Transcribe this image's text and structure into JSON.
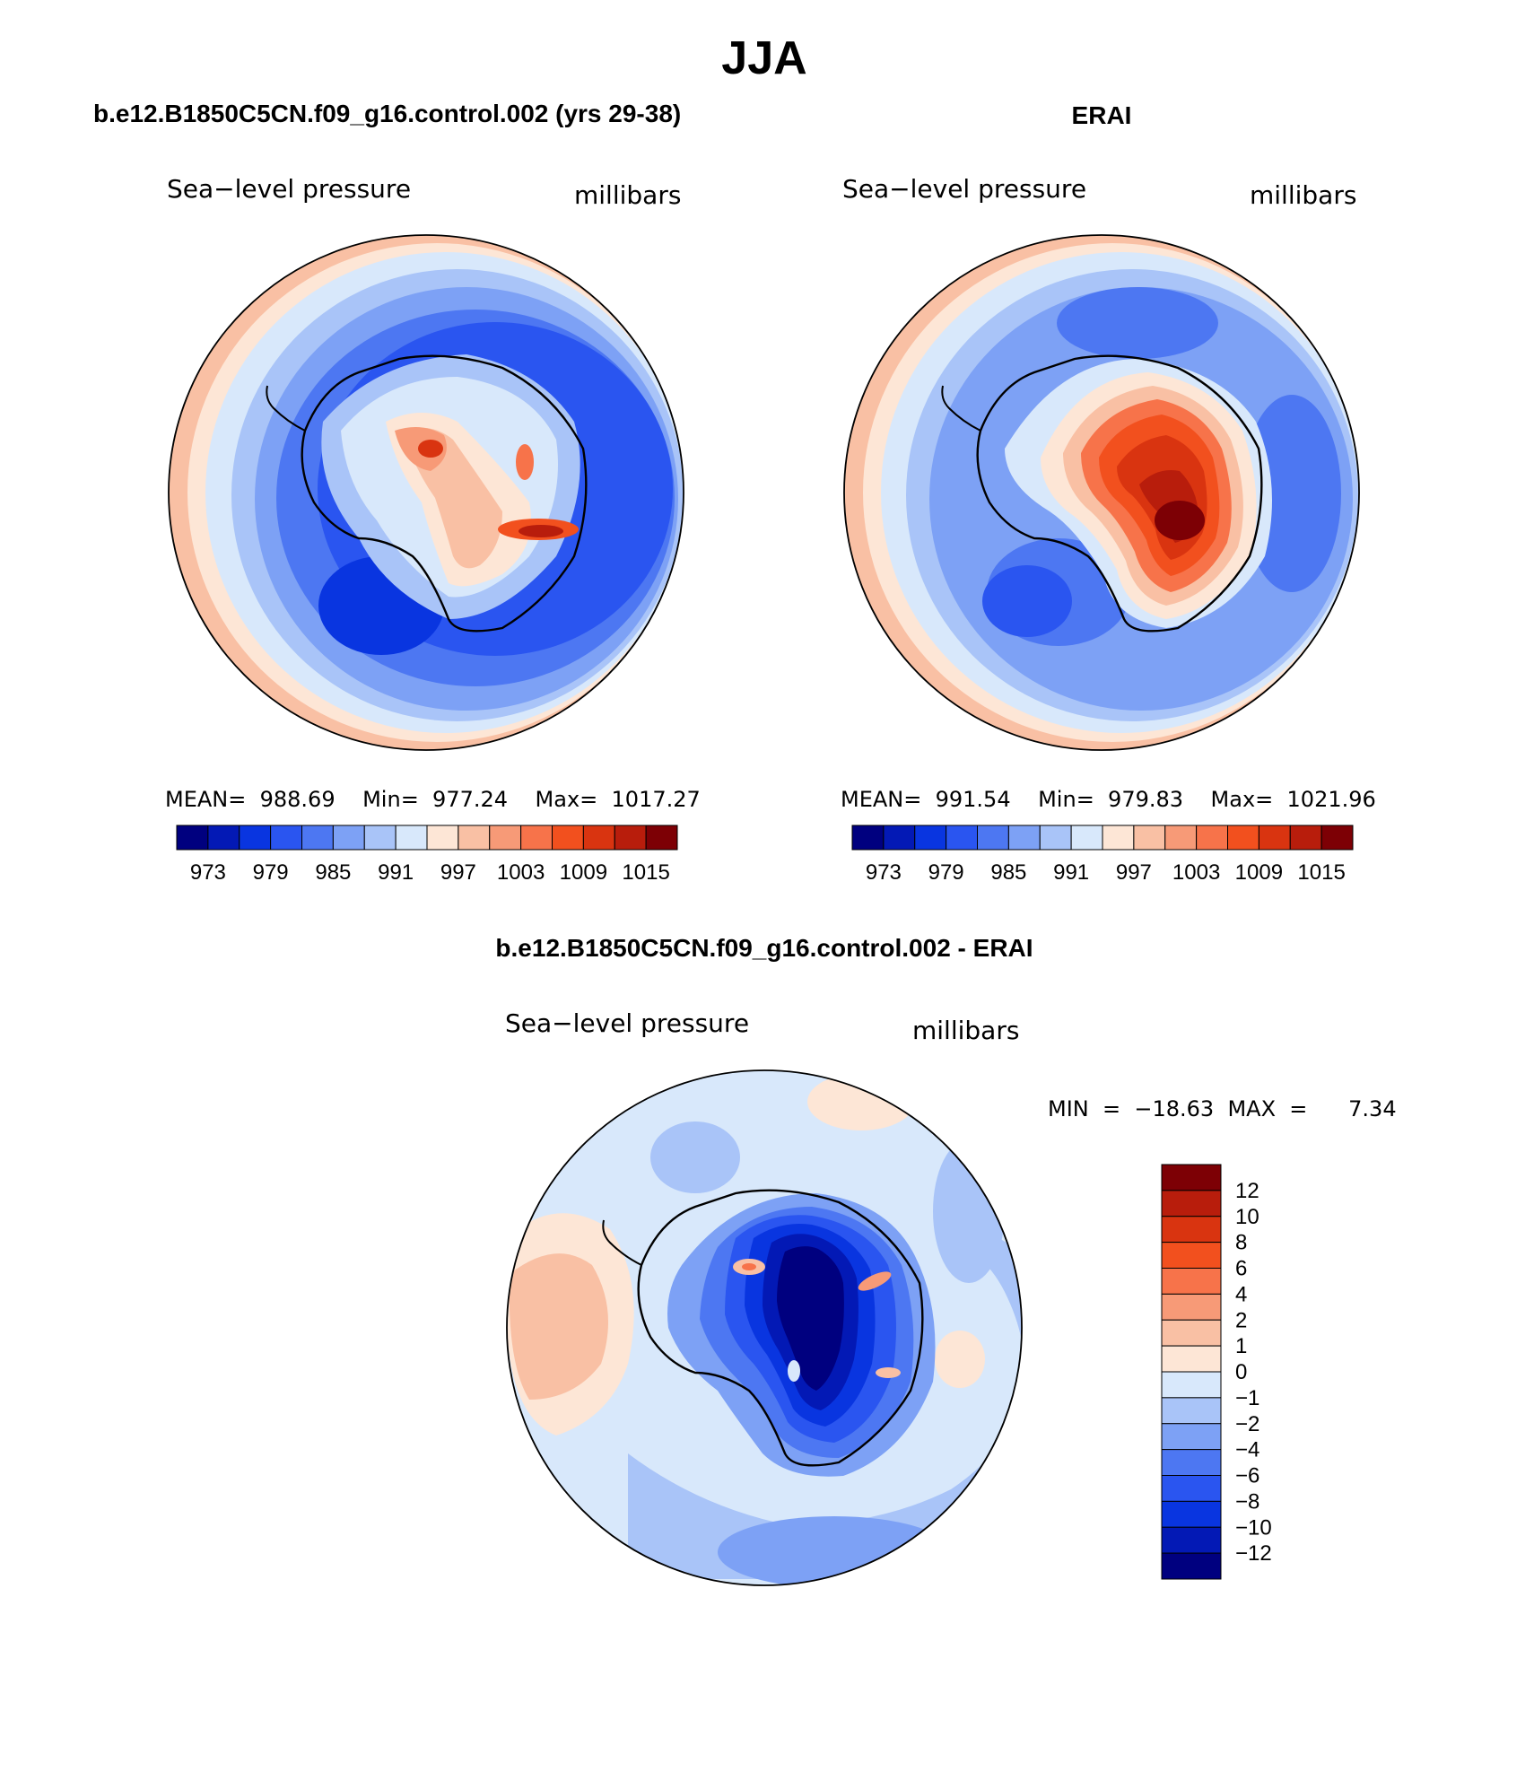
{
  "title": "JJA",
  "panels": [
    {
      "heading": "b.e12.B1850C5CN.f09_g16.control.002 (yrs 29-38)",
      "variable": "Sea−level pressure",
      "units": "millibars",
      "stats": "MEAN=  988.69    Min=  977.24    Max=  1017.27"
    },
    {
      "heading": "ERAI",
      "variable": "Sea−level pressure",
      "units": "millibars",
      "stats": "MEAN=  991.54    Min=  979.83    Max=  1021.96"
    },
    {
      "heading": "b.e12.B1850C5CN.f09_g16.control.002 - ERAI",
      "variable": "Sea−level pressure",
      "units": "millibars",
      "stats": "MIN  =  −18.63  MAX  =      7.34"
    }
  ],
  "colorbar_abs": {
    "colors": [
      "#00007f",
      "#0319b5",
      "#0935e0",
      "#2a55f0",
      "#4d77f2",
      "#7da1f5",
      "#a9c4f8",
      "#d8e8fb",
      "#fde6d6",
      "#f9c0a4",
      "#f79a77",
      "#f7734a",
      "#f2501e",
      "#d93410",
      "#b81d0c",
      "#7d0005"
    ],
    "labels": [
      "973",
      "979",
      "985",
      "991",
      "997",
      "1003",
      "1009",
      "1015"
    ]
  },
  "colorbar_diff": {
    "colors": [
      "#00007f",
      "#0319b5",
      "#0935e0",
      "#2a55f0",
      "#4d77f2",
      "#7da1f5",
      "#a9c4f8",
      "#d8e8fb",
      "#fde6d6",
      "#f9c0a4",
      "#f79a77",
      "#f7734a",
      "#f2501e",
      "#d93410",
      "#b81d0c",
      "#7d0005"
    ],
    "labels": [
      "−12",
      "−10",
      "−8",
      "−6",
      "−4",
      "−2",
      "−1",
      "0",
      "1",
      "2",
      "4",
      "6",
      "8",
      "10",
      "12"
    ]
  }
}
